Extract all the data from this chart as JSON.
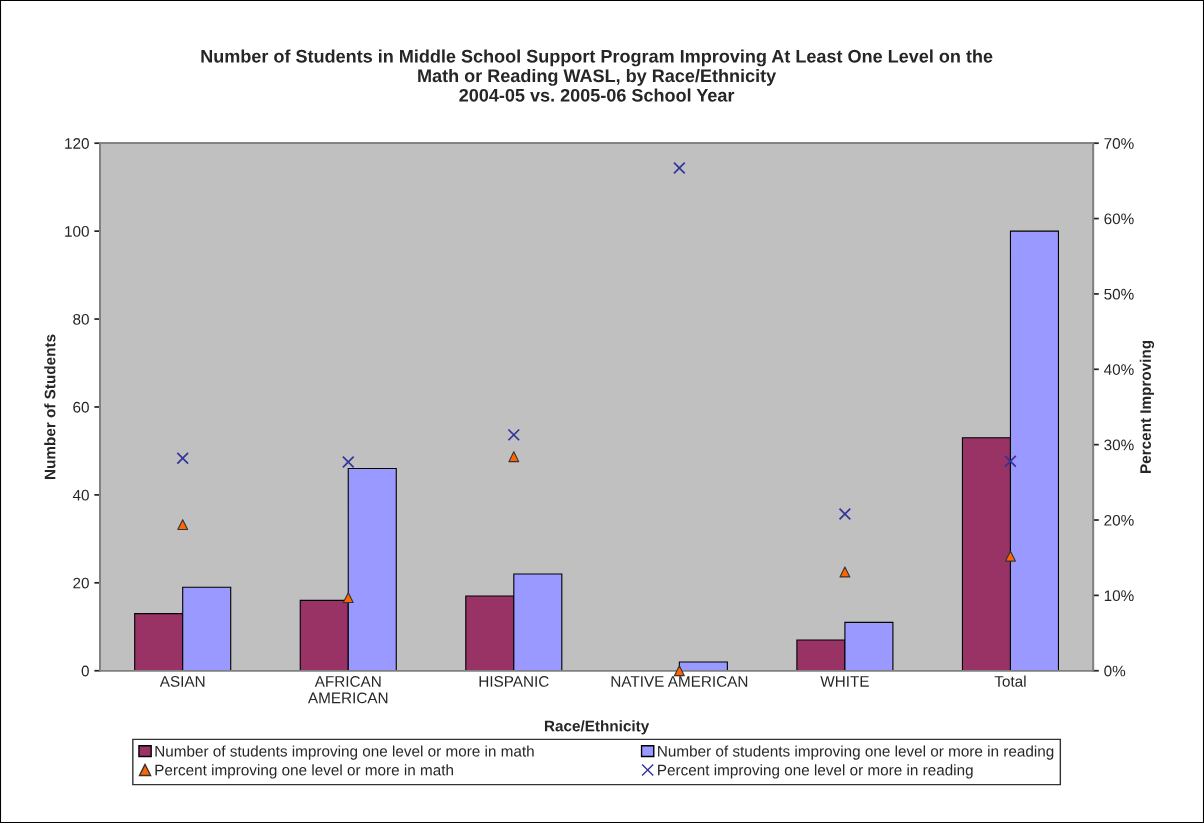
{
  "chart_data": {
    "type": "bar",
    "title": "Number of Students in Middle School Support Program Improving At Least One Level on the\nMath or Reading WASL, by Race/Ethnicity\n2004-05 vs. 2005-06 School Year",
    "xlabel": "Race/Ethnicity",
    "ylabel": "Number of Students",
    "y2label": "Percent Improving",
    "categories": [
      "ASIAN",
      "AFRICAN\nAMERICAN",
      "HISPANIC",
      "NATIVE AMERICAN",
      "WHITE",
      "Total"
    ],
    "series": [
      {
        "name": "Number of students improving one level or more in math",
        "color": "#993366",
        "values": [
          13,
          16,
          17,
          0,
          7,
          53
        ]
      },
      {
        "name": "Number of students improving one level or more in reading",
        "color": "#9999ff",
        "values": [
          19,
          46,
          22,
          2,
          11,
          100
        ]
      },
      {
        "name": "Percent improving one level or more in math",
        "type": "scatter",
        "axis": "y2",
        "marker": "triangle",
        "color": "#ff6600",
        "values": [
          19.4,
          9.7,
          28.4,
          0,
          13.1,
          15.2
        ]
      },
      {
        "name": "Percent improving one level or more in reading",
        "type": "scatter",
        "axis": "y2",
        "marker": "cross",
        "color": "#333399",
        "values": [
          28.2,
          27.7,
          31.3,
          66.7,
          20.8,
          27.8
        ]
      }
    ],
    "ylim": [
      0,
      120
    ],
    "yticks": [
      0,
      20,
      40,
      60,
      80,
      100,
      120
    ],
    "y2lim": [
      0,
      70
    ],
    "y2ticks": [
      {
        "value": 0,
        "label": "0%"
      },
      {
        "value": 10,
        "label": "10%"
      },
      {
        "value": 20,
        "label": "20%"
      },
      {
        "value": 30,
        "label": "30%"
      },
      {
        "value": 40,
        "label": "40%"
      },
      {
        "value": 50,
        "label": "50%"
      },
      {
        "value": 60,
        "label": "60%"
      },
      {
        "value": 70,
        "label": "70%"
      }
    ],
    "grid": false,
    "legend": "bottom"
  }
}
